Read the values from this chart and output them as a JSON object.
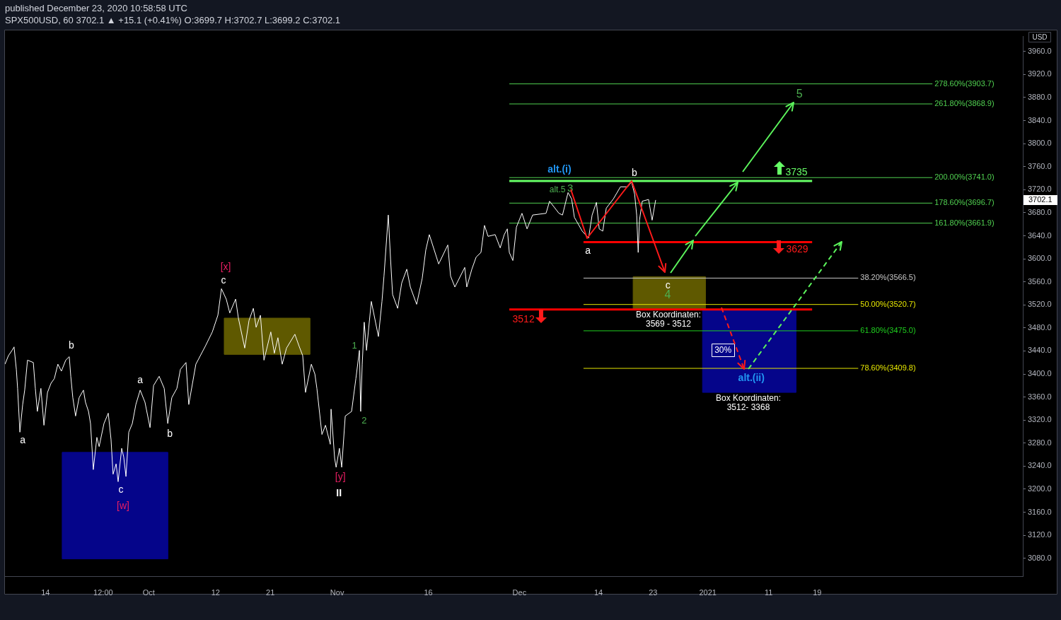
{
  "chart_data": {
    "type": "line",
    "title": "published December 23, 2020 10:58:58 UTC",
    "subtitle": "SPX500USD, 60 3702.1 ▲ +15.1 (+0.41%) O:3699.7 H:3702.7 L:3699.2 C:3702.1",
    "ylabel": "USD",
    "x": [
      "2020-09-07T08:00",
      "2020-09-07T22:00",
      "2020-09-08T12:00",
      "2020-09-08T20:00",
      "2020-09-09T05:00",
      "2020-09-09T10:00",
      "2020-09-09T19:00",
      "2020-09-10T06:00",
      "2020-09-10T14:00",
      "2020-09-11T01:00",
      "2020-09-12T00:00",
      "2020-09-12T08:00",
      "2020-09-12T16:00",
      "2020-09-13T06:00",
      "2020-09-13T18:00",
      "2020-09-14T08:00",
      "2020-09-14T22:00",
      "2020-09-15T11:00",
      "2020-09-16T01:00",
      "2020-09-16T15:00",
      "2020-09-17T08:00",
      "2020-09-17T22:00",
      "2020-09-18T04:00",
      "2020-09-18T12:00",
      "2020-09-18T23:00",
      "2020-09-19T13:00",
      "2020-09-20T06:00",
      "2020-09-20T14:00",
      "2020-09-21T02:00",
      "2020-09-21T10:00",
      "2020-09-21T21:00",
      "2020-09-22T11:00",
      "2020-09-22T20:00",
      "2020-09-23T15:00",
      "2020-09-24T08:00",
      "2020-09-24T19:00",
      "2020-09-25T03:00",
      "2020-09-25T15:00",
      "2020-09-25T23:00",
      "2020-09-26T13:00",
      "2020-09-26T21:00",
      "2020-09-27T06:00",
      "2020-09-27T17:00",
      "2020-09-28T07:00",
      "2020-09-28T21:00",
      "2020-09-29T14:00",
      "2020-09-30T09:00",
      "2020-10-01T05:00",
      "2020-10-01T19:00",
      "2020-10-02T17:00",
      "2020-10-03T13:00",
      "2020-10-04T03:00",
      "2020-10-04T19:00",
      "2020-10-05T15:00",
      "2020-10-06T05:00",
      "2020-10-07T03:00",
      "2020-10-07T14:00",
      "2020-10-08T18:00",
      "2020-10-10T07:00",
      "2020-10-11T11:00",
      "2020-10-12T09:00",
      "2020-10-12T23:00",
      "2020-10-13T18:00",
      "2020-10-14T08:00",
      "2020-10-15T07:00",
      "2020-10-15T18:00",
      "2020-10-16T19:00",
      "2020-10-17T12:00",
      "2020-10-18T05:00",
      "2020-10-18T16:00",
      "2020-10-19T09:00",
      "2020-10-19T23:00",
      "2020-10-21T02:00",
      "2020-10-21T16:00",
      "2020-10-22T06:00",
      "2020-10-22T23:00",
      "2020-10-23T16:00",
      "2020-10-25T01:00",
      "2020-10-25T18:00",
      "2020-10-26T08:00",
      "2020-10-26T19:00",
      "2020-10-27T18:00",
      "2020-10-28T08:00",
      "2020-10-28T16:00",
      "2020-10-29T12:00",
      "2020-10-30T02:00",
      "2020-10-30T21:00",
      "2020-10-31T00:00",
      "2020-10-31T14:00",
      "2020-10-31T20:00",
      "2020-11-01T09:00",
      "2020-11-01T18:00",
      "2020-11-02T08:00",
      "2020-11-03T09:00",
      "2020-11-04T02:00",
      "2020-11-04T16:00",
      "2020-11-04T21:00",
      "2020-11-05T03:00",
      "2020-11-05T11:00",
      "2020-11-05T20:00",
      "2020-11-06T15:00",
      "2020-11-07T19:00",
      "2020-11-08T09:00",
      "2020-11-08T17:00",
      "2020-11-09T10:00",
      "2020-11-09T19:00",
      "2020-11-10T03:00",
      "2020-11-10T23:00",
      "2020-11-11T15:00",
      "2020-11-12T11:00",
      "2020-11-13T01:00",
      "2020-11-14T02:00",
      "2020-11-15T00:00",
      "2020-11-15T14:00",
      "2020-11-16T04:00",
      "2020-11-17T17:00",
      "2020-11-19T05:00",
      "2020-11-19T16:00",
      "2020-11-20T09:00",
      "2020-11-22T00:00",
      "2020-11-22T08:00",
      "2020-11-23T04:00",
      "2020-11-23T21:00",
      "2020-11-24T16:00",
      "2020-11-25T06:00",
      "2020-11-25T20:00",
      "2020-11-27T00:00",
      "2020-11-27T20:00",
      "2020-11-28T12:00",
      "2020-11-29T00:00",
      "2020-11-29T08:00",
      "2020-11-29T22:00",
      "2020-11-30T12:00",
      "2020-12-01T10:00",
      "2020-12-02T06:00",
      "2020-12-03T04:00",
      "2020-12-05T09:00",
      "2020-12-05T23:00",
      "2020-12-07T12:00",
      "2020-12-08T02:00",
      "2020-12-09T00:00",
      "2020-12-09T14:00",
      "2020-12-10T01:00",
      "2020-12-11T08:00",
      "2020-12-12T09:00",
      "2020-12-12T23:00",
      "2020-12-13T16:00",
      "2020-12-14T03:00",
      "2020-12-14T17:00",
      "2020-12-15T07:00",
      "2020-12-16T11:00",
      "2020-12-17T15:00",
      "2020-12-18T19:00",
      "2020-12-19T11:00",
      "2020-12-19T23:00",
      "2020-12-20T07:00",
      "2020-12-20T13:00",
      "2020-12-20T18:00",
      "2020-12-21T05:00",
      "2020-12-22T06:00",
      "2020-12-22T20:00",
      "2020-12-23T10:00"
    ],
    "series": [
      {
        "color": "#ffffff",
        "values": [
          3417,
          3432,
          3441,
          3447,
          3408,
          3375,
          3299,
          3347,
          3372,
          3424,
          3420,
          3375,
          3335,
          3375,
          3311,
          3368,
          3384,
          3392,
          3417,
          3405,
          3424,
          3430,
          3396,
          3359,
          3327,
          3359,
          3372,
          3351,
          3335,
          3314,
          3234,
          3290,
          3274,
          3314,
          3332,
          3286,
          3226,
          3244,
          3213,
          3271,
          3256,
          3222,
          3299,
          3314,
          3347,
          3372,
          3351,
          3307,
          3380,
          3396,
          3375,
          3314,
          3359,
          3375,
          3408,
          3420,
          3347,
          3417,
          3448,
          3473,
          3502,
          3548,
          3530,
          3506,
          3530,
          3497,
          3445,
          3493,
          3514,
          3481,
          3502,
          3424,
          3473,
          3436,
          3463,
          3417,
          3445,
          3469,
          3448,
          3432,
          3368,
          3417,
          3400,
          3375,
          3295,
          3311,
          3278,
          3339,
          3254,
          3238,
          3271,
          3238,
          3327,
          3335,
          3392,
          3441,
          3335,
          3417,
          3490,
          3441,
          3526,
          3465,
          3526,
          3570,
          3676,
          3599,
          3538,
          3514,
          3558,
          3582,
          3551,
          3521,
          3566,
          3615,
          3642,
          3591,
          3624,
          3570,
          3551,
          3585,
          3551,
          3582,
          3603,
          3611,
          3658,
          3639,
          3642,
          3619,
          3642,
          3652,
          3611,
          3597,
          3655,
          3679,
          3652,
          3676,
          3679,
          3700,
          3679,
          3676,
          3715,
          3704,
          3672,
          3648,
          3636,
          3676,
          3698,
          3652,
          3648,
          3688,
          3704,
          3725,
          3725,
          3733,
          3712,
          3676,
          3611,
          3667,
          3700,
          3703,
          3667,
          3702.1
        ]
      },
      {
        "name": "278.60%(3903.7)",
        "color": "#50d050",
        "x": [
          "2020-11-29T08:00",
          "2021-02-06T23:00"
        ],
        "values": [
          3903.7,
          3903.7
        ]
      },
      {
        "name": "261.80%(3868.9)",
        "color": "#50d050",
        "x": [
          "2020-11-29T08:00",
          "2021-02-06T23:00"
        ],
        "values": [
          3868.9,
          3868.9
        ]
      },
      {
        "name": "200.00%(3741.0)",
        "color": "#50d050",
        "x": [
          "2020-11-29T08:00",
          "2021-02-06T23:00"
        ],
        "values": [
          3741.0,
          3741.0
        ]
      },
      {
        "name": "178.60%(3696.7)",
        "color": "#50d050",
        "x": [
          "2020-11-29T08:00",
          "2021-02-06T23:00"
        ],
        "values": [
          3696.7,
          3696.7
        ]
      },
      {
        "name": "161.80%(3661.9)",
        "color": "#50d050",
        "x": [
          "2020-11-29T08:00",
          "2021-02-06T23:00"
        ],
        "values": [
          3661.9,
          3661.9
        ]
      },
      {
        "name": "38.20%(3566.5)",
        "color": "#c8c8c8",
        "x": [
          "2020-12-11T13:00",
          "2021-01-25T18:00"
        ],
        "values": [
          3566.5,
          3566.5
        ]
      },
      {
        "name": "50.00%(3520.7)",
        "color": "#e6e600",
        "x": [
          "2020-12-11T13:00",
          "2021-01-25T18:00"
        ],
        "values": [
          3520.7,
          3520.7
        ]
      },
      {
        "name": "61.80%(3475.0)",
        "color": "#1fd01f",
        "x": [
          "2020-12-11T13:00",
          "2021-01-25T18:00"
        ],
        "values": [
          3475.0,
          3475.0
        ]
      },
      {
        "name": "78.60%(3409.8)",
        "color": "#e6e600",
        "x": [
          "2020-12-11T13:00",
          "2021-01-25T18:00"
        ],
        "values": [
          3409.8,
          3409.8
        ]
      },
      {
        "color": "#66ff66",
        "x": [
          "2020-11-29T08:00",
          "2021-01-18T04:00"
        ],
        "values": [
          3735,
          3735
        ]
      },
      {
        "color": "#ff0000",
        "x": [
          "2020-12-11T13:00",
          "2021-01-18T04:00"
        ],
        "values": [
          3629,
          3629
        ]
      },
      {
        "color": "#ff0000",
        "x": [
          "2020-11-29T08:00",
          "2021-01-18T04:00"
        ],
        "values": [
          3512,
          3512
        ]
      },
      {
        "type": "area",
        "color": "#05058a",
        "x": [
          "2020-09-16T18:00",
          "2020-09-16T18:00",
          "2020-10-04T03:00",
          "2020-10-04T03:00",
          "2020-09-16T18:00"
        ],
        "values": [
          3079,
          3264,
          3264,
          3079,
          3079
        ]
      },
      {
        "type": "area",
        "color": "#5f5900",
        "x": [
          "2020-10-13T10:00",
          "2020-10-13T10:00",
          "2020-10-27T12:00",
          "2020-10-27T12:00",
          "2020-10-13T10:00"
        ],
        "values": [
          3434,
          3497,
          3497,
          3434,
          3434
        ]
      },
      {
        "type": "area",
        "color": "#5f5900",
        "x": [
          "2020-12-19T17:00",
          "2020-12-19T17:00",
          "2020-12-31T14:00",
          "2020-12-31T14:00",
          "2020-12-19T17:00"
        ],
        "values": [
          3512,
          3569,
          3569,
          3512,
          3512
        ]
      },
      {
        "type": "area",
        "color": "#05058a",
        "x": [
          "2020-12-31T03:00",
          "2020-12-31T03:00",
          "2021-01-15T12:00",
          "2021-01-15T12:00",
          "2020-12-31T03:00"
        ],
        "values": [
          3368,
          3512,
          3512,
          3368,
          3368
        ]
      }
    ],
    "xlim": [
      "2020-09-07T08:00",
      "2021-02-21T20:00"
    ],
    "xticks": [
      {
        "value": "2020-09-14",
        "label": "14"
      },
      {
        "value": "2020-09-23T12:00",
        "label": "12:00"
      },
      {
        "value": "2020-10",
        "label": "Oct"
      },
      {
        "value": "2020-10-12",
        "label": "12"
      },
      {
        "value": "2020-10-21",
        "label": "21"
      },
      {
        "value": "2020-11",
        "label": "Nov"
      },
      {
        "value": "2020-11-16",
        "label": "16"
      },
      {
        "value": "2020-12",
        "label": "Dec"
      },
      {
        "value": "2020-12-14",
        "label": "14"
      },
      {
        "value": "2020-12-23",
        "label": "23"
      },
      {
        "value": "2021",
        "label": "2021"
      },
      {
        "value": "2021-01-11",
        "label": "11"
      },
      {
        "value": "2021-01-19",
        "label": "19"
      }
    ],
    "ylim": [
      3049,
      3986
    ],
    "yticks": [
      {
        "value": 3080,
        "label": "3080.0"
      },
      {
        "value": 3120,
        "label": "3120.0"
      },
      {
        "value": 3160,
        "label": "3160.0"
      },
      {
        "value": 3200,
        "label": "3200.0"
      },
      {
        "value": 3240,
        "label": "3240.0"
      },
      {
        "value": 3280,
        "label": "3280.0"
      },
      {
        "value": 3320,
        "label": "3320.0"
      },
      {
        "value": 3360,
        "label": "3360.0"
      },
      {
        "value": 3400,
        "label": "3400.0"
      },
      {
        "value": 3440,
        "label": "3440.0"
      },
      {
        "value": 3480,
        "label": "3480.0"
      },
      {
        "value": 3520,
        "label": "3520.0"
      },
      {
        "value": 3560,
        "label": "3560.0"
      },
      {
        "value": 3600,
        "label": "3600.0"
      },
      {
        "value": 3640,
        "label": "3640.0"
      },
      {
        "value": 3680,
        "label": "3680.0"
      },
      {
        "value": 3720,
        "label": "3720.0"
      },
      {
        "value": 3760,
        "label": "3760.0"
      },
      {
        "value": 3800,
        "label": "3800.0"
      },
      {
        "value": 3840,
        "label": "3840.0"
      },
      {
        "value": 3880,
        "label": "3880.0"
      },
      {
        "value": 3920,
        "label": "3920.0"
      },
      {
        "value": 3960,
        "label": "3960.0"
      }
    ],
    "annotations": [
      {
        "text": "b",
        "x": "2020-09-17T22:00",
        "y": 3430
      },
      {
        "text": "a",
        "x": "2020-09-09T19:00",
        "y": 3299
      },
      {
        "text": "c",
        "x": "2020-09-25T23:00",
        "y": 3213
      },
      {
        "text": "[w]",
        "x": "2020-09-25T23:00",
        "y": 3213
      },
      {
        "text": "a",
        "x": "2020-09-29T14:00",
        "y": 3372
      },
      {
        "text": "b",
        "x": "2020-10-04T03:00",
        "y": 3314
      },
      {
        "text": "[x]",
        "x": "2020-10-12T23:00",
        "y": 3548
      },
      {
        "text": "c",
        "x": "2020-10-12T23:00",
        "y": 3548
      },
      {
        "text": "1",
        "x": "2020-11-04T16:00",
        "y": 3441
      },
      {
        "text": "2",
        "x": "2020-11-04T21:00",
        "y": 3335
      },
      {
        "text": "[y]",
        "x": "2020-10-31T20:00",
        "y": 3238
      },
      {
        "text": "II",
        "x": "2020-10-31T20:00",
        "y": 3238
      },
      {
        "text": "alt.(i)",
        "x": "2020-12-07T14:00",
        "y": 3741.0
      },
      {
        "text": "alt.5",
        "x": "2020-12-09T00:00",
        "y": 3715
      },
      {
        "text": "3",
        "x": "2020-12-09T00:00",
        "y": 3715
      },
      {
        "text": "b",
        "x": "2020-12-19T11:00",
        "y": 3733
      },
      {
        "text": "a",
        "x": "2020-12-12T09:00",
        "y": 3636
      },
      {
        "text": "c",
        "x": "2020-12-25T10:00",
        "y": 3566.5
      },
      "4",
      {
        "text": "5",
        "x": "2021-01-16T02:00",
        "y": 3868.9
      },
      "Box Koordinaten:\n3569 - 3512",
      "Box Koordinaten:\n3512- 3368",
      {
        "text": "alt.(ii)",
        "x": "2021-01-08T04:00",
        "y": 3409.8
      },
      {
        "text": "30%",
        "x": "2021-01-03T12:00",
        "y": 3441
      },
      {
        "text": "3735",
        "x": "2021-01-15T14:00",
        "y": 3735
      },
      {
        "text": "3629",
        "x": "2021-01-15T17:00",
        "y": 3629
      },
      {
        "text": "3512",
        "x": "2020-12-01T16:00",
        "y": 3512
      },
      "3702.1"
    ]
  }
}
